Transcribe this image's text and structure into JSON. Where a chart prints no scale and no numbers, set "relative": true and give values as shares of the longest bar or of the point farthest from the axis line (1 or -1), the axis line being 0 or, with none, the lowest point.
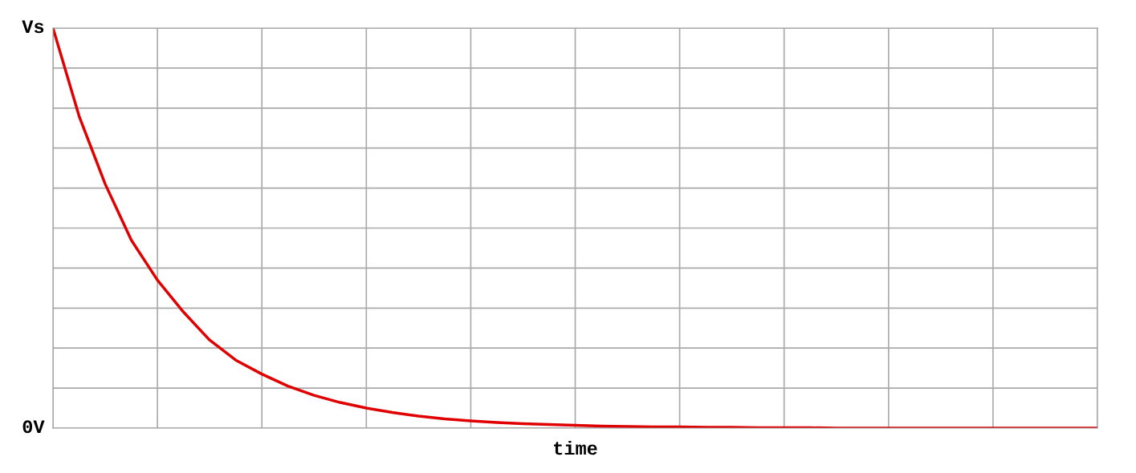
{
  "chart_data": {
    "type": "line",
    "xlabel": "time",
    "relative": true,
    "annotations": [
      "Vs",
      "0V"
    ],
    "categories": [
      null,
      null,
      null,
      null,
      null,
      null,
      null,
      null,
      null,
      null,
      null,
      null,
      null,
      null,
      null,
      null,
      null,
      null,
      null,
      null,
      null,
      null,
      null,
      null,
      null,
      null,
      null,
      null,
      null,
      null,
      null,
      null,
      null,
      null,
      null,
      null,
      null,
      null,
      null,
      null,
      null
    ],
    "series": [
      {
        "color": "#e00000",
        "values": [
          1,
          0.78,
          0.61,
          0.47,
          0.37,
          0.29,
          0.22,
          0.17,
          0.135,
          0.105,
          0.082,
          0.064,
          0.05,
          0.039,
          0.03,
          0.023,
          0.018,
          0.014,
          0.011,
          0.009,
          0.007,
          0.005,
          0.004,
          0.003,
          0.003,
          0.002,
          0.002,
          0.001,
          0.001,
          0.001,
          0,
          0,
          0,
          0,
          0,
          0,
          0,
          0,
          0,
          0,
          0
        ]
      }
    ],
    "grid": true,
    "marker": "none",
    "line_style": "solid"
  }
}
